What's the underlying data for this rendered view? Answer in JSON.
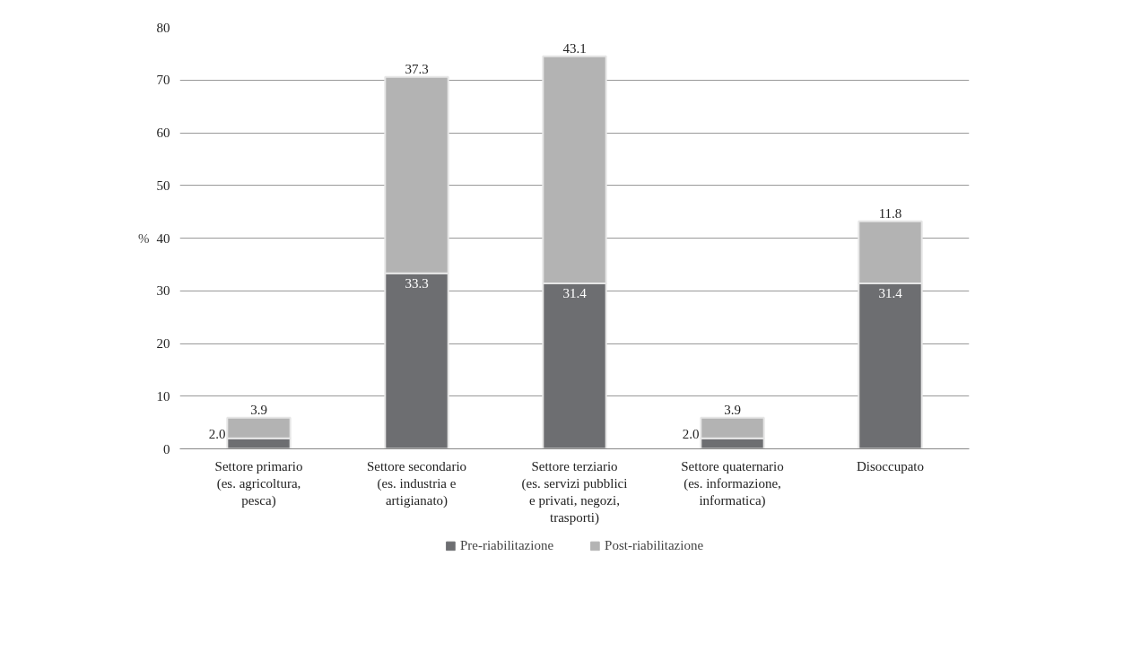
{
  "chart_data": {
    "type": "bar",
    "stacked": true,
    "ylabel": "%",
    "categories": [
      "Settore primario\n(es. agricoltura,\npesca)",
      "Settore secondario\n(es. industria e\nartigianato)",
      "Settore terziario\n(es. servizi pubblici\ne privati, negozi,\ntrasporti)",
      "Settore quaternario\n(es. informazione,\ninformatica)",
      "Disoccupato"
    ],
    "series": [
      {
        "name": "Pre-riabilitazione",
        "color": "#6d6e71",
        "values": [
          2.0,
          33.3,
          31.4,
          2.0,
          31.4
        ],
        "value_labels": [
          "2.0",
          "33.3",
          "31.4",
          "2.0",
          "31.4"
        ]
      },
      {
        "name": "Post-riabilitazione",
        "color": "#b3b3b3",
        "values": [
          3.9,
          37.3,
          43.1,
          3.9,
          11.8
        ],
        "value_labels": [
          "3.9",
          "37.3",
          "43.1",
          "3.9",
          "11.8"
        ]
      }
    ],
    "ylim": [
      0,
      80
    ],
    "yticks": [
      0,
      10,
      20,
      30,
      40,
      50,
      60,
      70,
      80
    ],
    "grid": "y",
    "legend": "bottom"
  }
}
